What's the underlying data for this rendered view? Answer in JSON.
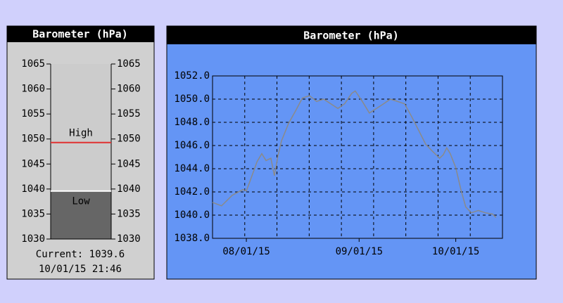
{
  "chart_data": [
    {
      "type": "gauge",
      "title": "Barometer (hPa)",
      "ylim": [
        1030,
        1065
      ],
      "yticks": [
        1030,
        1035,
        1040,
        1045,
        1050,
        1055,
        1060,
        1065
      ],
      "value": 1039.6,
      "value_label": "Current:",
      "timestamp": "10/01/15 21:46",
      "fill_color": "#666666",
      "tube_color": "#cccccc",
      "markers": [
        {
          "label": "High",
          "value": 1049.3,
          "color": "#e03030"
        },
        {
          "label": "Low",
          "value": 1039.6,
          "color": "#ffffff"
        }
      ]
    },
    {
      "type": "line",
      "title": "Barometer (hPa)",
      "x": [
        0,
        0.28,
        0.61,
        0.94,
        1.05,
        1.16,
        1.38,
        1.53,
        1.66,
        1.81,
        1.92,
        2.03,
        2.14,
        2.36,
        2.58,
        2.79,
        3.01,
        3.23,
        3.45,
        3.67,
        3.89,
        4.1,
        4.32,
        4.43,
        4.65,
        4.87,
        5.09,
        5.31,
        5.52,
        5.74,
        5.96,
        6.18,
        6.4,
        6.62,
        6.83,
        7.05,
        7.16,
        7.27,
        7.38,
        7.55,
        7.71,
        7.86,
        8.03,
        8.25,
        8.47,
        8.69,
        8.8
      ],
      "series": [
        {
          "color": "#8a8a8a",
          "values": [
            1041.1,
            1040.8,
            1041.7,
            1042.2,
            1042.1,
            1042.9,
            1044.6,
            1045.3,
            1044.7,
            1044.9,
            1043.4,
            1045.1,
            1046.4,
            1047.9,
            1049.0,
            1050.1,
            1050.3,
            1049.8,
            1050.0,
            1049.6,
            1049.2,
            1049.6,
            1050.5,
            1050.7,
            1049.8,
            1048.8,
            1049.2,
            1049.6,
            1050.0,
            1049.8,
            1049.6,
            1048.5,
            1047.3,
            1046.1,
            1045.5,
            1044.9,
            1045.2,
            1045.8,
            1045.3,
            1044.1,
            1042.2,
            1040.7,
            1040.2,
            1040.4,
            1040.2,
            1040.1,
            1039.8
          ]
        }
      ],
      "xlim": [
        0,
        9
      ],
      "ylim": [
        1038,
        1052
      ],
      "yticks": [
        {
          "value": 1038,
          "label": "1038.0"
        },
        {
          "value": 1040,
          "label": "1040.0"
        },
        {
          "value": 1042,
          "label": "1042.0"
        },
        {
          "value": 1044,
          "label": "1044.0"
        },
        {
          "value": 1046,
          "label": "1046.0"
        },
        {
          "value": 1048,
          "label": "1048.0"
        },
        {
          "value": 1050,
          "label": "1050.0"
        },
        {
          "value": 1052,
          "label": "1052.0"
        }
      ],
      "xticks": [
        {
          "value": 1.05,
          "label": "08/01/15"
        },
        {
          "value": 4.55,
          "label": "09/01/15"
        },
        {
          "value": 7.55,
          "label": "10/01/15"
        }
      ],
      "xgrid": [
        1,
        2,
        3,
        4,
        5,
        6,
        7,
        8
      ],
      "grid": true,
      "background": "#6495f5"
    }
  ]
}
